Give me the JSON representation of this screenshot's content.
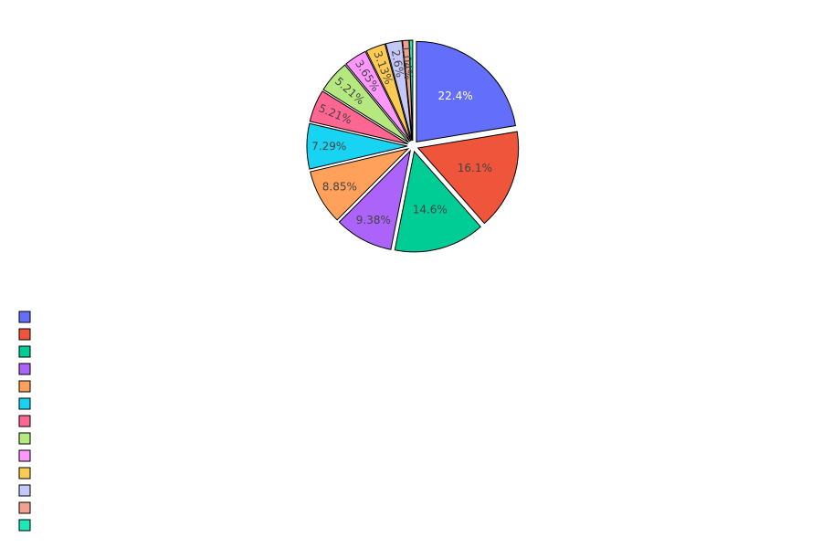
{
  "chart_data": {
    "type": "pie",
    "title": "",
    "direction": "clockwise",
    "start_angle_deg": 0,
    "text_color_light": "#ffffff",
    "text_color_dark": "#444444",
    "slice_border_color": "#000000",
    "legend": {
      "placement": "left-bottom",
      "labels_visible": false
    },
    "slices": [
      {
        "percent": 22.4,
        "label": "22.4%",
        "color": "#636efa"
      },
      {
        "percent": 16.1,
        "label": "16.1%",
        "color": "#EF553B"
      },
      {
        "percent": 14.6,
        "label": "14.6%",
        "color": "#00cc96"
      },
      {
        "percent": 9.38,
        "label": "9.38%",
        "color": "#ab63fa"
      },
      {
        "percent": 8.85,
        "label": "8.85%",
        "color": "#FFA15A"
      },
      {
        "percent": 7.29,
        "label": "7.29%",
        "color": "#19d3f3"
      },
      {
        "percent": 5.21,
        "label": "5.21%",
        "color": "#FF6692"
      },
      {
        "percent": 5.21,
        "label": "5.21%",
        "color": "#B6E880"
      },
      {
        "percent": 3.65,
        "label": "3.65%",
        "color": "#FF97FF"
      },
      {
        "percent": 3.13,
        "label": "3.13%",
        "color": "#FECB52"
      },
      {
        "percent": 2.6,
        "label": "2.6%",
        "color": "#c4c8f8"
      },
      {
        "percent": 1.04,
        "label": "1.04%",
        "color": "#f4a08f"
      },
      {
        "percent": 0.54,
        "label": "",
        "color": "#1de9b6"
      }
    ]
  }
}
